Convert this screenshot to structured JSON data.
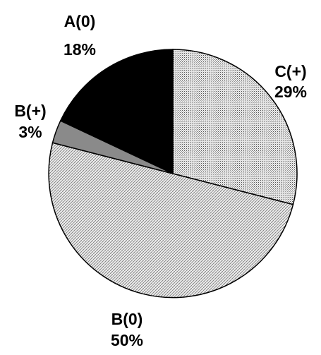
{
  "chart_data": {
    "type": "pie",
    "start_angle_deg": 0,
    "direction": "clockwise",
    "slices": [
      {
        "label": "C(+)",
        "value": 29,
        "value_label": "29%",
        "fill": "#d2d2d2",
        "pattern": "dots"
      },
      {
        "label": "B(0)",
        "value": 50,
        "value_label": "50%",
        "fill": "#dcdcdc",
        "pattern": "hatch"
      },
      {
        "label": "B(+)",
        "value": 3,
        "value_label": "3%",
        "fill": "#8a8a8a",
        "pattern": "solid"
      },
      {
        "label": "A(0)",
        "value": 18,
        "value_label": "18%",
        "fill": "#000000",
        "pattern": "solid"
      }
    ],
    "legend": "none"
  }
}
